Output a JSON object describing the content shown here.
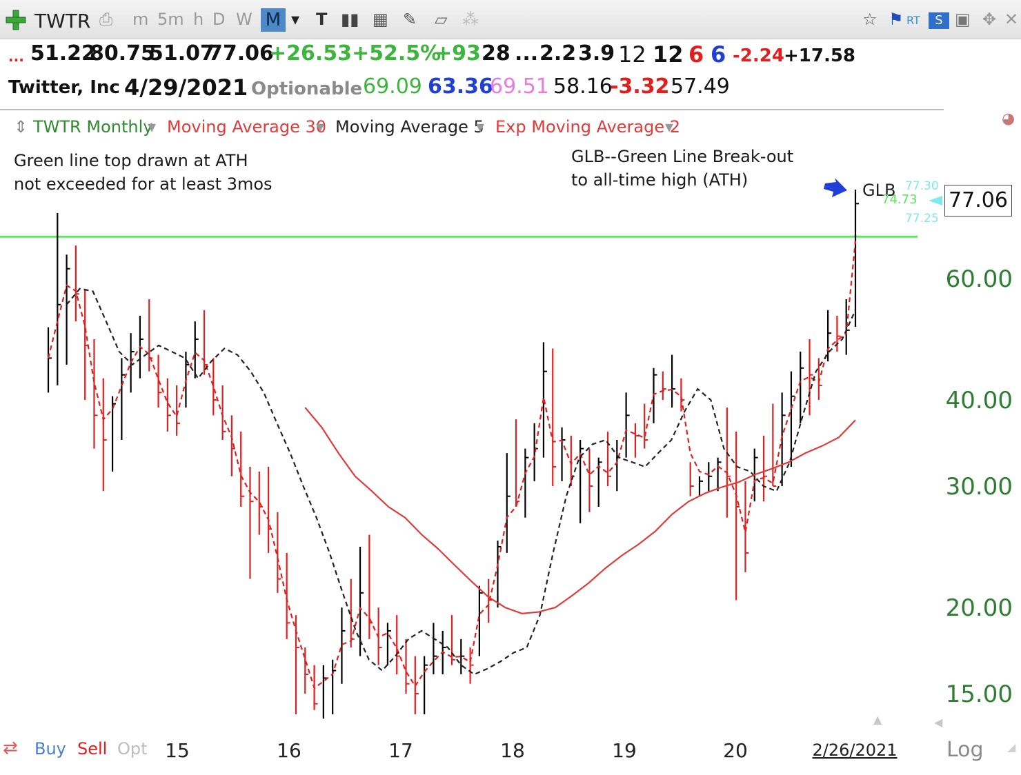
{
  "toolbar": {
    "symbol": "TWTR",
    "intervals": [
      "m",
      "5m",
      "h",
      "D",
      "W",
      "M"
    ],
    "active_interval": "M",
    "icons": [
      "add-symbol-icon",
      "print-icon",
      "dropdown-icon",
      "text-tool-icon",
      "bar-style-icon",
      "table-icon",
      "pencil-icon",
      "note-icon",
      "share-icon",
      "star-icon",
      "flag-icon",
      "rt-icon",
      "s-icon",
      "save-icon",
      "move-icon",
      "close-icon"
    ]
  },
  "quote": {
    "dots": "...",
    "open": "51.22",
    "high": "80.75",
    "low": "51.07",
    "close": "77.06",
    "change": "+26.53",
    "change_pct": "+52.5%",
    "v1": "+93",
    "v2": "28",
    "v3": "...",
    "v4": "2.2",
    "v5": "3.9",
    "v6": "12",
    "v7": "12",
    "v8": "6",
    "v9": "6",
    "v10": "-2.24",
    "v11": "+17.58",
    "company": "Twitter, Inc",
    "date": "4/29/2021",
    "optionable": "Optionable",
    "w1": "69.09",
    "w2": "63.36",
    "w3": "69.51",
    "w4": "58.16",
    "w5": "-3.32",
    "w6": "57.49"
  },
  "studies": {
    "main": "TWTR Monthly",
    "ma30": "Moving Average 30",
    "ma5": "Moving Average 5",
    "ema2": "Exp Moving Average 2"
  },
  "notes": {
    "left_line1": "Green line top drawn at ATH",
    "left_line2": "not exceeded for at least 3mos",
    "right_line1": "GLB--Green Line Break-out",
    "right_line2": "to all-time high (ATH)",
    "glb": "GLB"
  },
  "price_labels": {
    "last": "77.06",
    "cyan_top": "77.30",
    "green": "74.73",
    "cyan_bottom": "77.25"
  },
  "bottom": {
    "buy": "Buy",
    "sell": "Sell",
    "opt": "Opt",
    "last_date": "2/26/2021",
    "log": "Log"
  },
  "colors": {
    "green_line": "#5ee55e",
    "up_bar": "#000000",
    "down_bar": "#e02020",
    "ma30": "#e03b3b",
    "ma5": "#222222",
    "ema2": "#e02020",
    "axis_text": "#2e7d32"
  },
  "chart_data": {
    "type": "bar",
    "subtype": "ohlc",
    "scale": "log",
    "ylim": [
      13.5,
      82
    ],
    "yticks": [
      15,
      20,
      30,
      40,
      60
    ],
    "ytick_labels": [
      "15.00",
      "20.00",
      "30.00",
      "40.00",
      "60.00"
    ],
    "xticks": [
      "15",
      "16",
      "17",
      "18",
      "19",
      "20"
    ],
    "x_end_label": "2/26/2021",
    "ath_line": 69.0,
    "series_names": [
      "TWTR Monthly",
      "Moving Average 30",
      "Moving Average 5",
      "Exp Moving Average 2"
    ],
    "bars": [
      {
        "h": 51.0,
        "l": 41.0,
        "c": 46.0
      },
      {
        "h": 74.7,
        "l": 42.0,
        "c": 55.0
      },
      {
        "h": 65.0,
        "l": 45.0,
        "c": 62.0
      },
      {
        "h": 67.0,
        "l": 52.0,
        "c": 57.0
      },
      {
        "h": 58.0,
        "l": 40.0,
        "c": 48.0
      },
      {
        "h": 49.0,
        "l": 34.0,
        "c": 38.0
      },
      {
        "h": 43.0,
        "l": 29.5,
        "c": 35.0
      },
      {
        "h": 40.5,
        "l": 31.5,
        "c": 39.5
      },
      {
        "h": 46.0,
        "l": 35.0,
        "c": 43.5
      },
      {
        "h": 50.0,
        "l": 41.0,
        "c": 47.0
      },
      {
        "h": 53.0,
        "l": 43.0,
        "c": 49.0
      },
      {
        "h": 56.0,
        "l": 44.0,
        "c": 46.0
      },
      {
        "h": 46.5,
        "l": 39.0,
        "c": 41.0
      },
      {
        "h": 43.0,
        "l": 36.0,
        "c": 38.0
      },
      {
        "h": 42.0,
        "l": 35.5,
        "c": 37.0
      },
      {
        "h": 47.0,
        "l": 39.0,
        "c": 45.0
      },
      {
        "h": 52.0,
        "l": 43.0,
        "c": 49.0
      },
      {
        "h": 54.0,
        "l": 43.5,
        "c": 45.0
      },
      {
        "h": 46.0,
        "l": 38.0,
        "c": 40.0
      },
      {
        "h": 42.0,
        "l": 35.0,
        "c": 36.0
      },
      {
        "h": 38.0,
        "l": 31.0,
        "c": 34.0
      },
      {
        "h": 36.0,
        "l": 28.0,
        "c": 29.0
      },
      {
        "h": 32.0,
        "l": 22.0,
        "c": 28.5
      },
      {
        "h": 31.5,
        "l": 25.5,
        "c": 28.0
      },
      {
        "h": 32.0,
        "l": 24.0,
        "c": 26.0
      },
      {
        "h": 27.5,
        "l": 21.0,
        "c": 22.0
      },
      {
        "h": 24.0,
        "l": 18.0,
        "c": 19.0
      },
      {
        "h": 19.5,
        "l": 14.0,
        "c": 17.5
      },
      {
        "h": 17.5,
        "l": 15.0,
        "c": 16.0
      },
      {
        "h": 16.5,
        "l": 14.2,
        "c": 14.5
      },
      {
        "h": 16.5,
        "l": 13.8,
        "c": 15.8
      },
      {
        "h": 16.8,
        "l": 14.0,
        "c": 16.2
      },
      {
        "h": 20.0,
        "l": 15.5,
        "c": 18.5
      },
      {
        "h": 22.0,
        "l": 17.5,
        "c": 18.0
      },
      {
        "h": 24.5,
        "l": 17.0,
        "c": 21.0
      },
      {
        "h": 25.5,
        "l": 18.0,
        "c": 19.0
      },
      {
        "h": 20.0,
        "l": 16.5,
        "c": 17.5
      },
      {
        "h": 19.0,
        "l": 16.5,
        "c": 18.5
      },
      {
        "h": 19.5,
        "l": 16.0,
        "c": 17.0
      },
      {
        "h": 18.0,
        "l": 15.0,
        "c": 15.5
      },
      {
        "h": 17.0,
        "l": 14.0,
        "c": 15.0
      },
      {
        "h": 17.0,
        "l": 14.0,
        "c": 16.5
      },
      {
        "h": 19.0,
        "l": 16.0,
        "c": 17.0
      },
      {
        "h": 18.5,
        "l": 16.0,
        "c": 17.5
      },
      {
        "h": 19.5,
        "l": 16.5,
        "c": 16.8
      },
      {
        "h": 18.0,
        "l": 16.0,
        "c": 17.0
      },
      {
        "h": 17.5,
        "l": 15.5,
        "c": 16.5
      },
      {
        "h": 21.5,
        "l": 17.0,
        "c": 21.0
      },
      {
        "h": 22.0,
        "l": 19.0,
        "c": 20.5
      },
      {
        "h": 25.0,
        "l": 20.0,
        "c": 24.5
      },
      {
        "h": 33.5,
        "l": 24.0,
        "c": 29.0
      },
      {
        "h": 37.5,
        "l": 28.0,
        "c": 28.5
      },
      {
        "h": 34.0,
        "l": 27.0,
        "c": 33.0
      },
      {
        "h": 37.0,
        "l": 30.5,
        "c": 34.0
      },
      {
        "h": 48.5,
        "l": 33.0,
        "c": 44.0
      },
      {
        "h": 47.5,
        "l": 30.0,
        "c": 32.0
      },
      {
        "h": 36.5,
        "l": 30.5,
        "c": 35.0
      },
      {
        "h": 35.5,
        "l": 30.0,
        "c": 31.0
      },
      {
        "h": 35.0,
        "l": 26.5,
        "c": 34.0
      },
      {
        "h": 34.0,
        "l": 27.5,
        "c": 30.0
      },
      {
        "h": 33.0,
        "l": 28.0,
        "c": 32.5
      },
      {
        "h": 36.0,
        "l": 30.0,
        "c": 31.0
      },
      {
        "h": 35.0,
        "l": 29.5,
        "c": 33.0
      },
      {
        "h": 41.0,
        "l": 33.0,
        "c": 38.0
      },
      {
        "h": 37.0,
        "l": 33.0,
        "c": 35.5
      },
      {
        "h": 39.5,
        "l": 34.0,
        "c": 35.0
      },
      {
        "h": 44.5,
        "l": 37.0,
        "c": 43.5
      },
      {
        "h": 44.0,
        "l": 40.0,
        "c": 41.5
      },
      {
        "h": 46.5,
        "l": 39.0,
        "c": 41.5
      },
      {
        "h": 43.0,
        "l": 38.5,
        "c": 40.0
      },
      {
        "h": 32.5,
        "l": 29.0,
        "c": 30.0
      },
      {
        "h": 31.0,
        "l": 29.0,
        "c": 30.5
      },
      {
        "h": 32.5,
        "l": 29.5,
        "c": 31.0
      },
      {
        "h": 33.0,
        "l": 29.5,
        "c": 32.5
      },
      {
        "h": 39.0,
        "l": 27.0,
        "c": 31.0
      },
      {
        "h": 36.0,
        "l": 20.5,
        "c": 28.0
      },
      {
        "h": 30.5,
        "l": 22.5,
        "c": 24.0
      },
      {
        "h": 34.0,
        "l": 28.5,
        "c": 33.0
      },
      {
        "h": 35.5,
        "l": 28.5,
        "c": 31.0
      },
      {
        "h": 39.5,
        "l": 30.0,
        "c": 30.0
      },
      {
        "h": 41.0,
        "l": 30.0,
        "c": 38.0
      },
      {
        "h": 44.0,
        "l": 32.0,
        "c": 40.5
      },
      {
        "h": 47.0,
        "l": 37.0,
        "c": 44.5
      },
      {
        "h": 49.0,
        "l": 38.0,
        "c": 43.5
      },
      {
        "h": 46.0,
        "l": 40.0,
        "c": 42.0
      },
      {
        "h": 54.0,
        "l": 45.5,
        "c": 50.0
      },
      {
        "h": 53.0,
        "l": 47.0,
        "c": 49.5
      },
      {
        "h": 56.0,
        "l": 46.5,
        "c": 50.5
      },
      {
        "h": 80.75,
        "l": 51.07,
        "c": 77.06
      }
    ],
    "ma30": [
      39.0,
      36.5,
      33.5,
      31.0,
      29.5,
      28.0,
      27.0,
      25.5,
      24.3,
      23.0,
      21.8,
      20.7,
      20.0,
      19.6,
      19.7,
      20.0,
      20.8,
      21.7,
      22.8,
      23.8,
      24.7,
      25.8,
      27.3,
      28.5,
      29.3,
      29.9,
      30.4,
      31.2,
      31.8,
      32.5,
      33.5,
      34.3,
      35.3,
      37.4
    ],
    "ma5": [
      55.0,
      58.0,
      57.5,
      52.0,
      47.0,
      45.0,
      46.5,
      48.0,
      47.0,
      46.0,
      43.0,
      45.5,
      47.5,
      46.5,
      44.0,
      41.0,
      37.0,
      33.5,
      30.0,
      27.0,
      24.0,
      21.0,
      18.5,
      16.8,
      16.2,
      17.0,
      18.0,
      18.5,
      18.0,
      17.5,
      16.5,
      16.0,
      16.3,
      16.7,
      17.2,
      17.5,
      19.5,
      24.0,
      29.0,
      33.0,
      34.5,
      35.0,
      33.0,
      32.5,
      32.0,
      33.5,
      35.0,
      38.5,
      41.5,
      40.0,
      34.0,
      32.0,
      31.5,
      30.0,
      29.5,
      32.5,
      38.0,
      44.0,
      47.0,
      49.0,
      54.0
    ]
  }
}
